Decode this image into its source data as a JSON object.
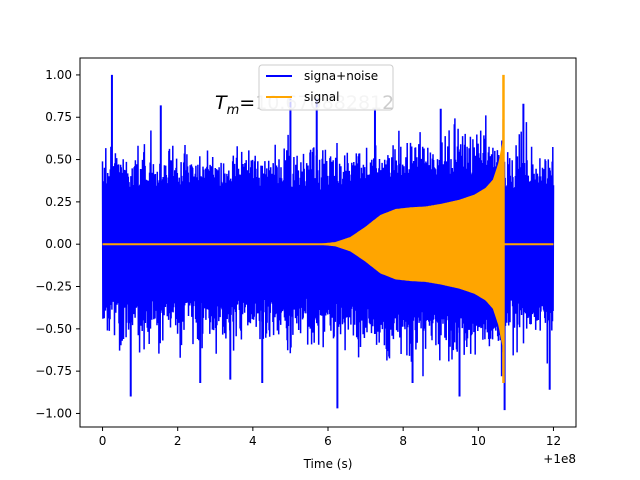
{
  "chart_data": {
    "type": "line",
    "xlabel": "Time (s)",
    "ylabel": "",
    "x_offset_label": "+1e8",
    "xlim": [
      -0.6,
      12.6
    ],
    "ylim": [
      -1.08,
      1.1
    ],
    "x_ticks": [
      0,
      2,
      4,
      6,
      8,
      10,
      12
    ],
    "x_tick_labels": [
      "0",
      "2",
      "4",
      "6",
      "8",
      "10",
      "12"
    ],
    "y_ticks": [
      -1.0,
      -0.75,
      -0.5,
      -0.25,
      0.0,
      0.25,
      0.5,
      0.75,
      1.0
    ],
    "y_tick_labels": [
      "−1.00",
      "−0.75",
      "−0.50",
      "−0.25",
      "0.00",
      "0.25",
      "0.50",
      "0.75",
      "1.00"
    ],
    "annotation": {
      "prefix": "T",
      "subscript": "m",
      "equals": "=",
      "value_left": "10.6",
      "value_hidden": "7088281",
      "value_right": "2"
    },
    "legend_position": "upper center",
    "grid": false,
    "series": [
      {
        "name": "signa+noise",
        "color": "#0000ff",
        "x_range": [
          0,
          12
        ],
        "noise_envelope": {
          "typical": 0.5,
          "max": 1.0,
          "min": -0.97
        },
        "spikes": [
          {
            "x": 0.25,
            "y": 1.0
          },
          {
            "x": 0.75,
            "y": -0.9
          },
          {
            "x": 1.55,
            "y": 0.82
          },
          {
            "x": 2.6,
            "y": -0.82
          },
          {
            "x": 3.4,
            "y": -0.8
          },
          {
            "x": 4.25,
            "y": -0.82
          },
          {
            "x": 5.0,
            "y": 0.86
          },
          {
            "x": 5.7,
            "y": 0.86
          },
          {
            "x": 6.25,
            "y": -0.97
          },
          {
            "x": 7.25,
            "y": 0.8
          },
          {
            "x": 8.25,
            "y": -0.82
          },
          {
            "x": 9.0,
            "y": 0.8
          },
          {
            "x": 9.5,
            "y": -0.9
          },
          {
            "x": 10.7,
            "y": -0.98
          },
          {
            "x": 11.2,
            "y": 0.83
          },
          {
            "x": 11.9,
            "y": -0.86
          }
        ]
      },
      {
        "name": "signal",
        "color": "#ffa500",
        "chirp_envelope": [
          {
            "x": 0,
            "y": 0.0
          },
          {
            "x": 5.8,
            "y": 0.0
          },
          {
            "x": 6.2,
            "y": 0.01
          },
          {
            "x": 6.6,
            "y": 0.04
          },
          {
            "x": 7.0,
            "y": 0.1
          },
          {
            "x": 7.4,
            "y": 0.17
          },
          {
            "x": 7.8,
            "y": 0.205
          },
          {
            "x": 8.2,
            "y": 0.215
          },
          {
            "x": 8.6,
            "y": 0.22
          },
          {
            "x": 9.0,
            "y": 0.235
          },
          {
            "x": 9.5,
            "y": 0.26
          },
          {
            "x": 9.9,
            "y": 0.29
          },
          {
            "x": 10.2,
            "y": 0.33
          },
          {
            "x": 10.4,
            "y": 0.38
          },
          {
            "x": 10.55,
            "y": 0.48
          },
          {
            "x": 10.65,
            "y": 0.6
          }
        ],
        "merger_time": 10.67,
        "peak": 1.0,
        "trough": -0.82,
        "end_x": 12
      }
    ]
  }
}
